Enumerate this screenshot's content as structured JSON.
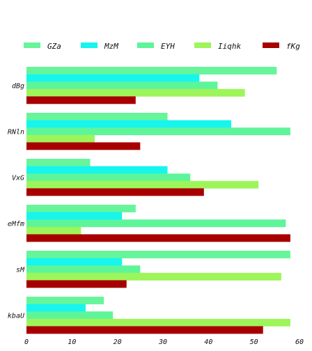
{
  "chart_data": {
    "type": "bar",
    "orientation": "horizontal",
    "title": "",
    "xlabel": "",
    "ylabel": "",
    "categories": [
      "dBg",
      "RNln",
      "VxG",
      "eMfm",
      "sM",
      "kbaU"
    ],
    "xlim": [
      0,
      60
    ],
    "xticks": [
      0,
      10,
      20,
      30,
      40,
      50,
      60
    ],
    "grid": false,
    "legend_position": "top",
    "series": [
      {
        "name": "GZa",
        "color": "#66f59a",
        "values": [
          55,
          31,
          14,
          24,
          58,
          17
        ]
      },
      {
        "name": "MzM",
        "color": "#16f5ee",
        "values": [
          38,
          45,
          31,
          21,
          21,
          13
        ]
      },
      {
        "name": "EYH",
        "color": "#5ef59a",
        "values": [
          42,
          58,
          36,
          57,
          25,
          19
        ]
      },
      {
        "name": "Iiqhk",
        "color": "#9df55a",
        "values": [
          48,
          15,
          51,
          12,
          56,
          58
        ]
      },
      {
        "name": "fKg",
        "color": "#a80000",
        "values": [
          24,
          25,
          39,
          58,
          22,
          52
        ]
      }
    ]
  }
}
